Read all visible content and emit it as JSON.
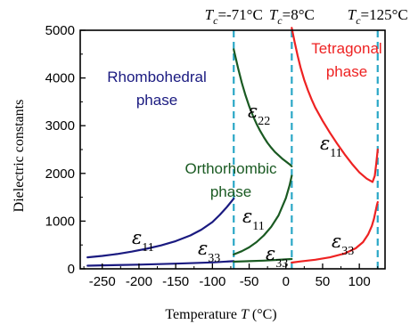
{
  "chart_data": {
    "type": "line",
    "xlabel": "Temperature T (°C)",
    "ylabel": "Dielectric constants",
    "xlim": [
      -280,
      135
    ],
    "ylim": [
      0,
      5000
    ],
    "xticks": [
      -250,
      -200,
      -150,
      -100,
      -50,
      0,
      50,
      100
    ],
    "yticks": [
      0,
      1000,
      2000,
      3000,
      4000,
      5000
    ],
    "grid": false,
    "transitions": [
      {
        "label": "T_c=-71°C",
        "x": -71
      },
      {
        "label": "T_c=8°C",
        "x": 8
      },
      {
        "label": "T_c=125°C",
        "x": 125
      }
    ],
    "phases": [
      {
        "name": "Rhombohedral phase",
        "line1": "Rhombohedral",
        "line2": "phase",
        "color": "#1a1a80"
      },
      {
        "name": "Orthorhombic phase",
        "line1": "Orthorhombic",
        "line2": "phase",
        "color": "#1a5a22"
      },
      {
        "name": "Tetragonal phase",
        "line1": "Tetragonal",
        "line2": "phase",
        "color": "#ee2222"
      }
    ],
    "transition_line_color": "#2aa7c6",
    "series": [
      {
        "name": "ε11",
        "phase": "rhombohedral",
        "color": "#1a1a80",
        "x": [
          -270,
          -250,
          -230,
          -210,
          -190,
          -170,
          -150,
          -130,
          -115,
          -100,
          -90,
          -80,
          -71
        ],
        "y": [
          240,
          270,
          310,
          360,
          420,
          490,
          580,
          700,
          820,
          980,
          1130,
          1300,
          1470
        ]
      },
      {
        "name": "ε33",
        "phase": "rhombohedral",
        "color": "#1a1a80",
        "x": [
          -270,
          -250,
          -200,
          -150,
          -100,
          -71
        ],
        "y": [
          65,
          72,
          88,
          108,
          135,
          160
        ]
      },
      {
        "name": "ε22",
        "phase": "orthorhombic",
        "color": "#1a5a22",
        "x": [
          -71,
          -65,
          -60,
          -55,
          -50,
          -45,
          -40,
          -35,
          -30,
          -25,
          -20,
          -15,
          -10,
          -5,
          0,
          5,
          8
        ],
        "y": [
          4600,
          4200,
          3900,
          3640,
          3410,
          3210,
          3040,
          2890,
          2760,
          2640,
          2540,
          2450,
          2380,
          2310,
          2250,
          2190,
          2150
        ]
      },
      {
        "name": "ε11",
        "phase": "orthorhombic",
        "color": "#1a5a22",
        "x": [
          -71,
          -60,
          -50,
          -40,
          -30,
          -20,
          -10,
          0,
          5,
          8
        ],
        "y": [
          300,
          370,
          450,
          560,
          700,
          880,
          1120,
          1480,
          1750,
          1950
        ]
      },
      {
        "name": "ε33",
        "phase": "orthorhombic",
        "color": "#1a5a22",
        "x": [
          -71,
          -50,
          -30,
          -10,
          8
        ],
        "y": [
          150,
          160,
          172,
          188,
          205
        ]
      },
      {
        "name": "ε11",
        "phase": "tetragonal",
        "color": "#ee2222",
        "x": [
          8,
          12,
          16,
          20,
          25,
          30,
          35,
          40,
          50,
          60,
          70,
          80,
          90,
          100,
          110,
          118,
          121,
          123,
          125
        ],
        "y": [
          5050,
          4750,
          4470,
          4220,
          3960,
          3740,
          3550,
          3380,
          3100,
          2850,
          2620,
          2400,
          2200,
          2020,
          1890,
          1820,
          1950,
          2200,
          2500
        ]
      },
      {
        "name": "ε33",
        "phase": "tetragonal",
        "color": "#ee2222",
        "x": [
          8,
          20,
          40,
          60,
          80,
          95,
          105,
          112,
          117,
          120,
          122,
          124,
          125
        ],
        "y": [
          130,
          155,
          190,
          240,
          320,
          430,
          560,
          720,
          900,
          1050,
          1200,
          1340,
          1400
        ]
      }
    ],
    "annotations": [
      {
        "symbol": "ε",
        "sub": "11",
        "color": "#000000"
      },
      {
        "symbol": "ε",
        "sub": "33",
        "color": "#000000"
      },
      {
        "symbol": "ε",
        "sub": "22",
        "color": "#000000"
      },
      {
        "symbol": "ε",
        "sub": "11",
        "color": "#000000"
      },
      {
        "symbol": "ε",
        "sub": "33",
        "color": "#000000"
      },
      {
        "symbol": "ε",
        "sub": "11",
        "color": "#000000"
      },
      {
        "symbol": "ε",
        "sub": "33",
        "color": "#000000"
      }
    ]
  }
}
